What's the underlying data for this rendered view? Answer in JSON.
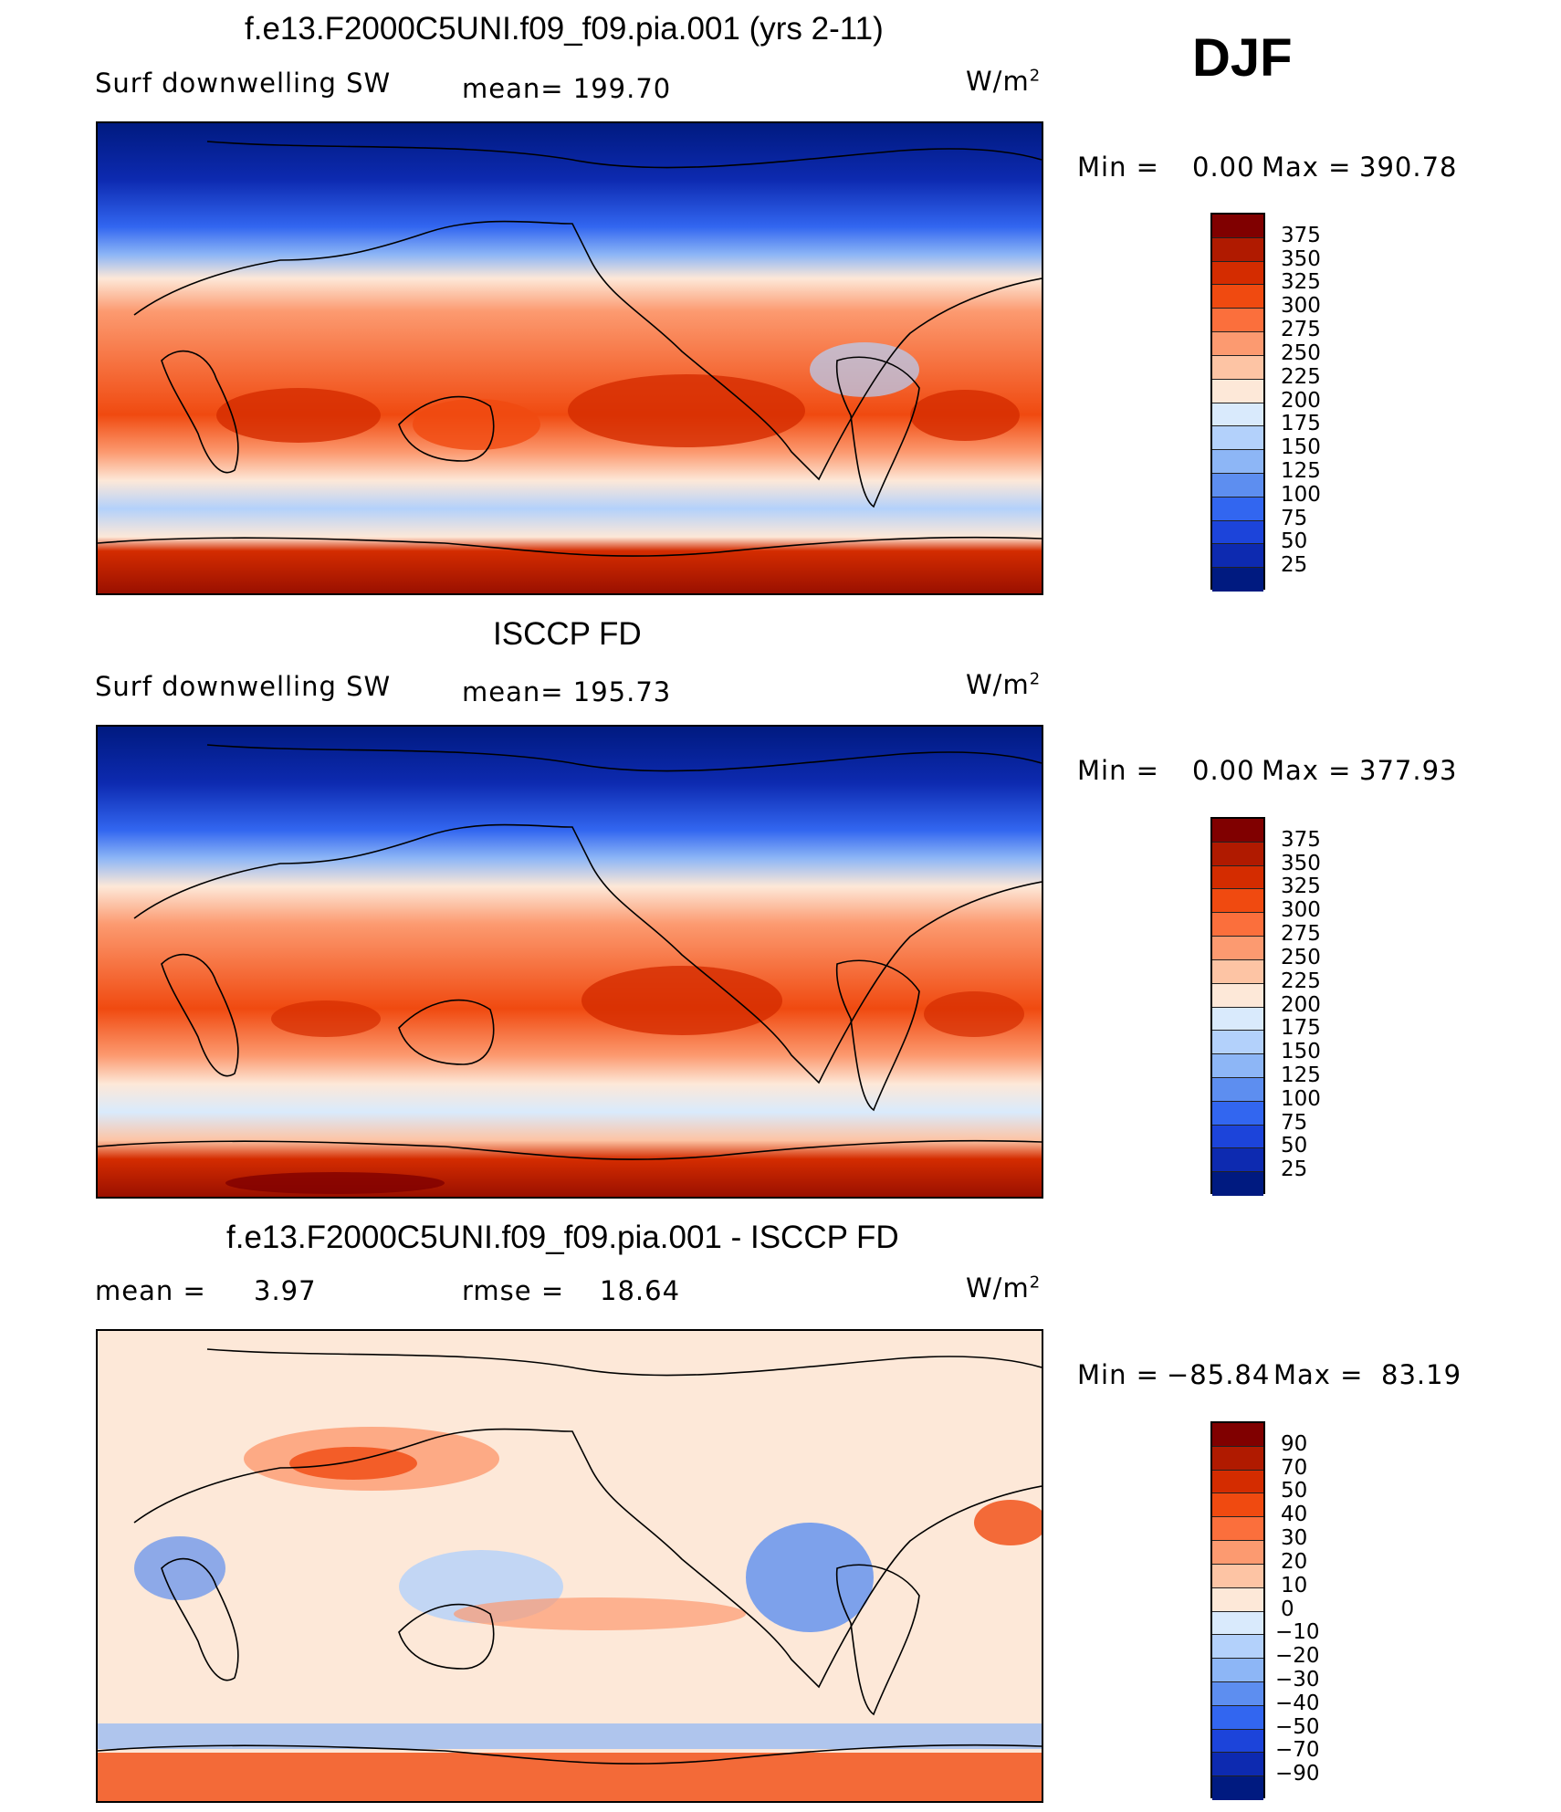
{
  "season": "DJF",
  "units": "W/m",
  "units_sup": "2",
  "panel1": {
    "title": "f.e13.F2000C5UNI.f09_f09.pia.001 (yrs 2-11)",
    "variable": "Surf downwelling SW",
    "mean_text": "mean= 199.70",
    "min_label": "Min =",
    "min_value": "0.00",
    "max_label": "Max =",
    "max_value": "390.78"
  },
  "panel2": {
    "title": "ISCCP FD",
    "variable": "Surf downwelling SW",
    "mean_text": "mean= 195.73",
    "min_label": "Min =",
    "min_value": "0.00",
    "max_label": "Max =",
    "max_value": "377.93"
  },
  "panel3": {
    "title": "f.e13.F2000C5UNI.f09_f09.pia.001 - ISCCP FD",
    "mean_label": "mean =",
    "mean_value": "3.97",
    "rmse_label": "rmse =",
    "rmse_value": "18.64",
    "min_label": "Min =",
    "min_value": "−85.84",
    "max_label": "Max =",
    "max_value": "83.19"
  },
  "colorbar_abs": {
    "labels": [
      "375",
      "350",
      "325",
      "300",
      "275",
      "250",
      "225",
      "200",
      "175",
      "150",
      "125",
      "100",
      "75",
      "50",
      "25"
    ],
    "colors": [
      "#800000",
      "#b01a00",
      "#d42c00",
      "#f04a10",
      "#fb6f3c",
      "#fc9a70",
      "#fdc4a4",
      "#fde8d8",
      "#d9eafc",
      "#b3d1fb",
      "#8db6f6",
      "#5d8ef0",
      "#3266f0",
      "#1c44da",
      "#0d2ab0",
      "#001a80"
    ]
  },
  "colorbar_diff": {
    "labels": [
      "90",
      "70",
      "50",
      "40",
      "30",
      "20",
      "10",
      "0",
      "−10",
      "−20",
      "−30",
      "−40",
      "−50",
      "−70",
      "−90"
    ],
    "colors": [
      "#800000",
      "#b01a00",
      "#d42c00",
      "#f04a10",
      "#fb6f3c",
      "#fc9a70",
      "#fdc4a4",
      "#fde8d8",
      "#d9eafc",
      "#b3d1fb",
      "#8db6f6",
      "#5d8ef0",
      "#3266f0",
      "#1c44da",
      "#0d2ab0",
      "#001a80"
    ]
  }
}
